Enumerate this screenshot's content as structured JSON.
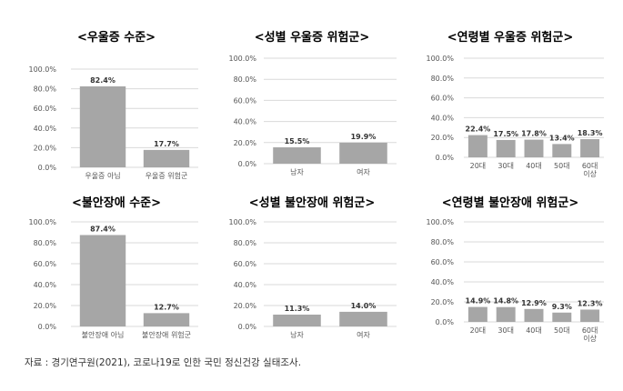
{
  "colors": {
    "bar": "#a6a6a6",
    "grid": "#d9d9d9",
    "text": "#555555"
  },
  "source": "자료 : 경기연구원(2021), 코로나19로 인한 국민 정신건강 실태조사.",
  "chart_data": [
    {
      "type": "bar",
      "title": "<우울증 수준>",
      "categories": [
        [
          "우울증 아님"
        ],
        [
          "우울증 위험군"
        ]
      ],
      "values": [
        82.4,
        17.7
      ],
      "value_labels": [
        "82.4%",
        "17.7%"
      ],
      "ylim": [
        0,
        100
      ],
      "yticks": [
        "0.0%",
        "20.0%",
        "40.0%",
        "60.0%",
        "80.0%",
        "100.0%"
      ],
      "grid": true
    },
    {
      "type": "bar",
      "title": "<성별 우울증 위험군>",
      "categories": [
        [
          "남자"
        ],
        [
          "여자"
        ]
      ],
      "values": [
        15.5,
        19.9
      ],
      "value_labels": [
        "15.5%",
        "19.9%"
      ],
      "ylim": [
        0,
        100
      ],
      "yticks": [
        "0.0%",
        "20.0%",
        "40.0%",
        "60.0%",
        "80.0%",
        "100.0%"
      ],
      "grid": true
    },
    {
      "type": "bar",
      "title": "<연령별 우울증 위험군>",
      "categories": [
        [
          "20대"
        ],
        [
          "30대"
        ],
        [
          "40대"
        ],
        [
          "50대"
        ],
        [
          "60대",
          "이상"
        ]
      ],
      "values": [
        22.4,
        17.5,
        17.8,
        13.4,
        18.3
      ],
      "value_labels": [
        "22.4%",
        "17.5%",
        "17.8%",
        "13.4%",
        "18.3%"
      ],
      "ylim": [
        0,
        100
      ],
      "yticks": [
        "0.0%",
        "20.0%",
        "40.0%",
        "60.0%",
        "80.0%",
        "100.0%"
      ],
      "grid": true
    },
    {
      "type": "bar",
      "title": "<불안장애 수준>",
      "categories": [
        [
          "불안장애 아님"
        ],
        [
          "불안장애 위험군"
        ]
      ],
      "values": [
        87.4,
        12.7
      ],
      "value_labels": [
        "87.4%",
        "12.7%"
      ],
      "ylim": [
        0,
        100
      ],
      "yticks": [
        "0.0%",
        "20.0%",
        "40.0%",
        "60.0%",
        "80.0%",
        "100.0%"
      ],
      "grid": true
    },
    {
      "type": "bar",
      "title": "<성별 불안장애 위험군>",
      "categories": [
        [
          "남자"
        ],
        [
          "여자"
        ]
      ],
      "values": [
        11.3,
        14.0
      ],
      "value_labels": [
        "11.3%",
        "14.0%"
      ],
      "ylim": [
        0,
        100
      ],
      "yticks": [
        "0.0%",
        "20.0%",
        "40.0%",
        "60.0%",
        "80.0%",
        "100.0%"
      ],
      "grid": true
    },
    {
      "type": "bar",
      "title": "<연령별 불안장애 위험군>",
      "categories": [
        [
          "20대"
        ],
        [
          "30대"
        ],
        [
          "40대"
        ],
        [
          "50대"
        ],
        [
          "60대",
          "이상"
        ]
      ],
      "values": [
        14.9,
        14.8,
        12.9,
        9.3,
        12.3
      ],
      "value_labels": [
        "14.9%",
        "14.8%",
        "12.9%",
        "9.3%",
        "12.3%"
      ],
      "ylim": [
        0,
        100
      ],
      "yticks": [
        "0.0%",
        "20.0%",
        "40.0%",
        "60.0%",
        "80.0%",
        "100.0%"
      ],
      "grid": true
    }
  ]
}
